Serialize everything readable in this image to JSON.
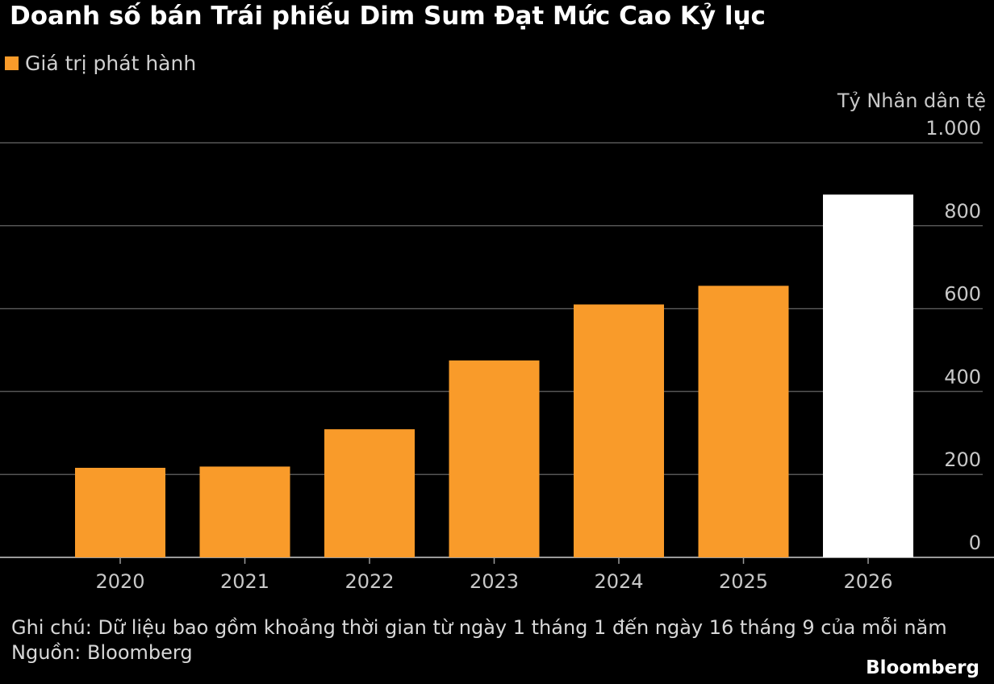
{
  "chart_data": {
    "type": "bar",
    "title": "Doanh số bán Trái phiếu Dim Sum Đạt Mức Cao Kỷ lục",
    "legend": {
      "label": "Giá trị phát hành",
      "placement": "top-left"
    },
    "unit_label": "Tỷ Nhân dân tệ",
    "categories": [
      "2020",
      "2021",
      "2022",
      "2023",
      "2024",
      "2025",
      "2026"
    ],
    "values": [
      216,
      219,
      309,
      475,
      610,
      655,
      875
    ],
    "bar_colors": [
      "#f99b2a",
      "#f99b2a",
      "#f99b2a",
      "#f99b2a",
      "#f99b2a",
      "#f99b2a",
      "#ffffff"
    ],
    "ylim": [
      0,
      1000
    ],
    "yticks": [
      0,
      200,
      400,
      600,
      800,
      1000
    ],
    "ytick_labels": [
      "0",
      "200",
      "400",
      "600",
      "800",
      "1.000"
    ],
    "grid": true,
    "y_axis_side": "right"
  },
  "note": "Ghi chú: Dữ liệu bao gồm khoảng thời gian từ ngày 1 tháng 1 đến ngày 16 tháng 9 của mỗi năm",
  "source": "Nguồn: Bloomberg",
  "brand": "Bloomberg",
  "colors": {
    "background": "#000000",
    "accent": "#f99b2a",
    "highlight": "#ffffff",
    "grid": "#555555"
  }
}
